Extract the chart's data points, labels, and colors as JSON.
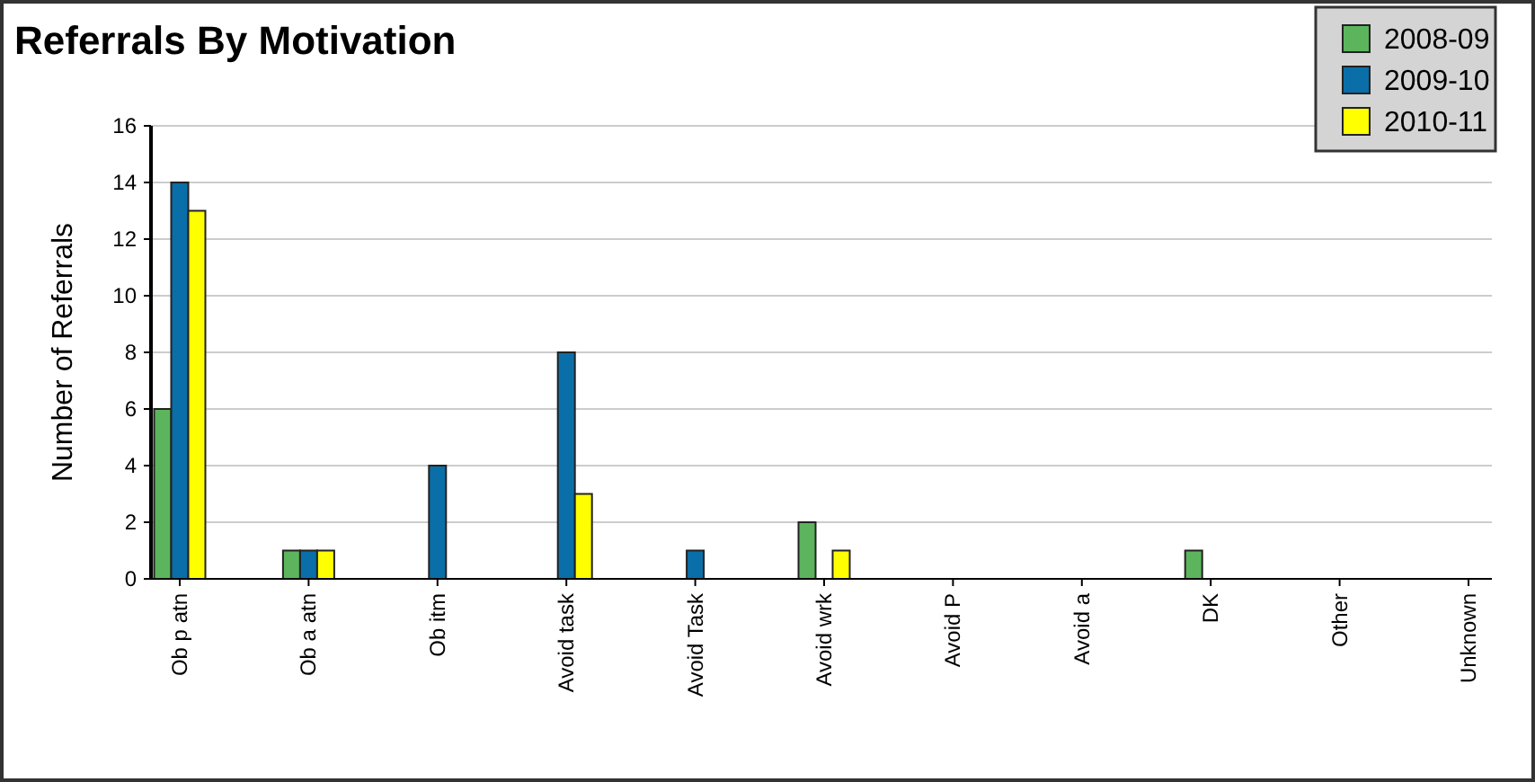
{
  "chart_data": {
    "type": "bar",
    "title": "Referrals By Motivation",
    "ylabel": "Number of Referrals",
    "categories": [
      "Ob p atn",
      "Ob a atn",
      "Ob itm",
      "Avoid task",
      "Avoid Task",
      "Avoid wrk",
      "Avoid P",
      "Avoid a",
      "DK",
      "Other",
      "Unknown"
    ],
    "series": [
      {
        "name": "2008-09",
        "color": "#5cb55c",
        "values": [
          6,
          1,
          0,
          0,
          0,
          2,
          0,
          0,
          1,
          0,
          0
        ]
      },
      {
        "name": "2009-10",
        "color": "#0a6fa8",
        "values": [
          14,
          1,
          4,
          8,
          1,
          0,
          0,
          0,
          0,
          0,
          0
        ]
      },
      {
        "name": "2010-11",
        "color": "#ffff00",
        "values": [
          13,
          1,
          0,
          3,
          0,
          1,
          0,
          0,
          0,
          0,
          0
        ]
      }
    ],
    "ylim": [
      0,
      16
    ],
    "yticks": [
      0,
      2,
      4,
      6,
      8,
      10,
      12,
      14,
      16
    ],
    "grid": "y",
    "legend": "top right"
  }
}
